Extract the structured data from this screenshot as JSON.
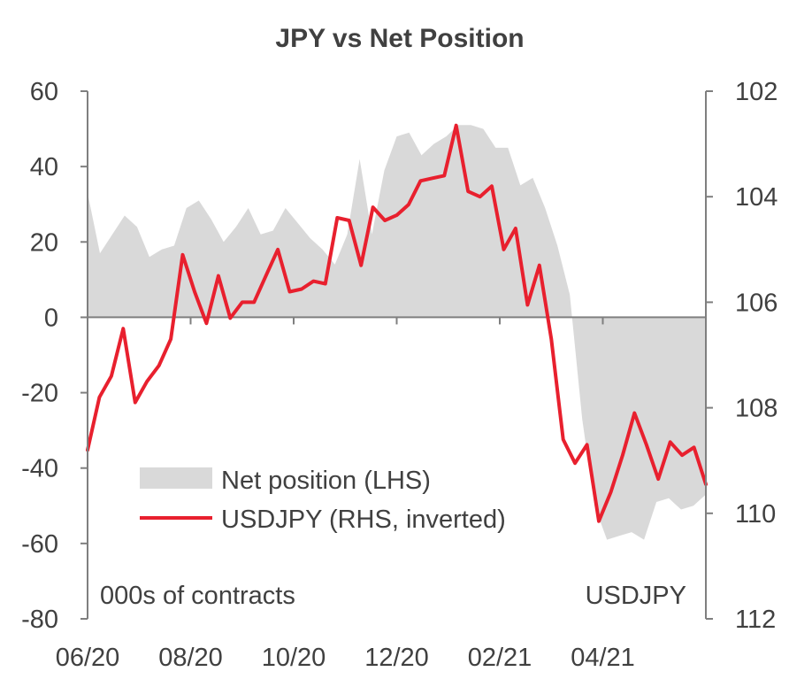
{
  "chart_data": {
    "type": "line",
    "title": "JPY vs Net Position",
    "x_tick_labels": [
      "06/20",
      "08/20",
      "10/20",
      "12/20",
      "02/21",
      "04/21"
    ],
    "left_axis": {
      "ylim": [
        -80,
        60
      ],
      "ticks": [
        "60",
        "40",
        "20",
        "0",
        "-20",
        "-40",
        "-60",
        "-80"
      ],
      "note": "000s of contracts"
    },
    "right_axis": {
      "ylim": [
        102,
        112
      ],
      "inverted": true,
      "ticks": [
        "102",
        "104",
        "106",
        "108",
        "110",
        "112"
      ],
      "note": "USDJPY"
    },
    "series": [
      {
        "name": "Net position (LHS)",
        "type": "area",
        "axis": "left",
        "color": "#d9d9d9",
        "values": [
          33,
          17,
          22,
          27,
          24,
          16,
          18,
          19,
          29,
          31,
          26,
          20,
          24,
          29,
          22,
          23,
          29,
          25,
          21,
          18,
          14,
          22,
          42,
          22,
          39,
          48,
          49,
          43,
          46,
          48,
          51,
          51,
          50,
          45,
          45,
          35,
          37,
          29,
          19,
          6,
          -27,
          -50,
          -59,
          -58,
          -57,
          -59,
          -49,
          -48,
          -51,
          -50,
          -47
        ]
      },
      {
        "name": "USDJPY (RHS, inverted)",
        "type": "line",
        "axis": "right",
        "color": "#e8202e",
        "values": [
          108.8,
          107.8,
          107.4,
          106.5,
          107.9,
          107.5,
          107.2,
          106.7,
          105.1,
          105.8,
          106.4,
          105.5,
          106.3,
          106.0,
          106.0,
          105.5,
          105.0,
          105.8,
          105.75,
          105.6,
          105.65,
          104.4,
          104.45,
          105.3,
          104.2,
          104.45,
          104.35,
          104.15,
          103.7,
          103.65,
          103.6,
          102.65,
          103.9,
          104.0,
          103.8,
          105.0,
          104.6,
          106.05,
          105.3,
          106.7,
          108.6,
          109.05,
          108.7,
          110.15,
          109.6,
          108.9,
          108.1,
          108.7,
          109.35,
          108.65,
          108.9,
          108.75,
          109.45
        ]
      }
    ]
  }
}
